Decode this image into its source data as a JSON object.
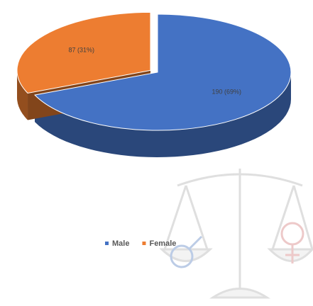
{
  "chart_data": {
    "type": "pie3d",
    "categories": [
      "Male",
      "Female"
    ],
    "values": [
      190,
      87
    ],
    "value_labels": [
      "190 (69%)",
      "87 (31%)"
    ],
    "colors": [
      "#4472c4",
      "#ed7d31"
    ],
    "legend": "bottom"
  }
}
